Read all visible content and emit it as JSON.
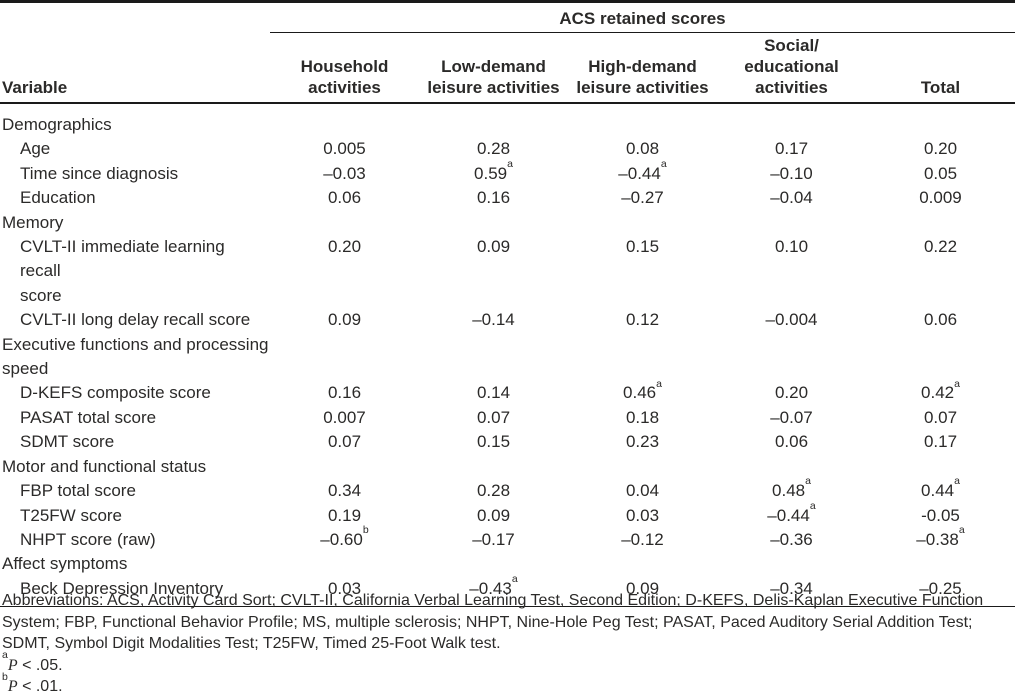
{
  "table": {
    "spanner": "ACS retained scores",
    "variable_header": "Variable",
    "columns": [
      {
        "name": "household-activities",
        "lines": [
          "Household",
          "activities"
        ]
      },
      {
        "name": "low-demand-leisure-activities",
        "lines": [
          "Low-demand",
          "leisure activities"
        ]
      },
      {
        "name": "high-demand-leisure-activities",
        "lines": [
          "High-demand",
          "leisure activities"
        ]
      },
      {
        "name": "social-educational-activities",
        "lines": [
          "Social/",
          "educational",
          "activities"
        ]
      },
      {
        "name": "total",
        "lines": [
          "Total"
        ]
      }
    ],
    "rows": [
      {
        "type": "section",
        "label": [
          "Demographics"
        ]
      },
      {
        "type": "item",
        "label": [
          "Age"
        ],
        "values": [
          {
            "v": "0.005"
          },
          {
            "v": "0.28"
          },
          {
            "v": "0.08"
          },
          {
            "v": "0.17"
          },
          {
            "v": "0.20"
          }
        ]
      },
      {
        "type": "item",
        "label": [
          "Time since diagnosis"
        ],
        "values": [
          {
            "v": "–0.03"
          },
          {
            "v": "0.59",
            "sup": "a"
          },
          {
            "v": "–0.44",
            "sup": "a"
          },
          {
            "v": "–0.10"
          },
          {
            "v": "0.05"
          }
        ]
      },
      {
        "type": "item",
        "label": [
          "Education"
        ],
        "values": [
          {
            "v": "0.06"
          },
          {
            "v": "0.16"
          },
          {
            "v": "–0.27"
          },
          {
            "v": "–0.04"
          },
          {
            "v": "0.009"
          }
        ]
      },
      {
        "type": "section",
        "label": [
          "Memory"
        ]
      },
      {
        "type": "item",
        "label": [
          "CVLT-II immediate learning recall",
          "score"
        ],
        "values": [
          {
            "v": "0.20"
          },
          {
            "v": "0.09"
          },
          {
            "v": "0.15"
          },
          {
            "v": "0.10"
          },
          {
            "v": "0.22"
          }
        ]
      },
      {
        "type": "item",
        "label": [
          "CVLT-II long delay recall score"
        ],
        "values": [
          {
            "v": "0.09"
          },
          {
            "v": "–0.14"
          },
          {
            "v": "0.12"
          },
          {
            "v": "–0.004"
          },
          {
            "v": "0.06"
          }
        ]
      },
      {
        "type": "section",
        "label": [
          "Executive functions and processing",
          "speed"
        ]
      },
      {
        "type": "item",
        "label": [
          "D-KEFS composite score"
        ],
        "values": [
          {
            "v": "0.16"
          },
          {
            "v": "0.14"
          },
          {
            "v": "0.46",
            "sup": "a"
          },
          {
            "v": "0.20"
          },
          {
            "v": "0.42",
            "sup": "a"
          }
        ]
      },
      {
        "type": "item",
        "label": [
          "PASAT total score"
        ],
        "values": [
          {
            "v": "0.007"
          },
          {
            "v": "0.07"
          },
          {
            "v": "0.18"
          },
          {
            "v": "–0.07"
          },
          {
            "v": "0.07"
          }
        ]
      },
      {
        "type": "item",
        "label": [
          "SDMT score"
        ],
        "values": [
          {
            "v": "0.07"
          },
          {
            "v": "0.15"
          },
          {
            "v": "0.23"
          },
          {
            "v": "0.06"
          },
          {
            "v": "0.17"
          }
        ]
      },
      {
        "type": "section",
        "label": [
          "Motor and functional status"
        ]
      },
      {
        "type": "item",
        "label": [
          "FBP total score"
        ],
        "values": [
          {
            "v": "0.34"
          },
          {
            "v": "0.28"
          },
          {
            "v": "0.04"
          },
          {
            "v": "0.48",
            "sup": "a"
          },
          {
            "v": "0.44",
            "sup": "a"
          }
        ]
      },
      {
        "type": "item",
        "label": [
          "T25FW score"
        ],
        "values": [
          {
            "v": "0.19"
          },
          {
            "v": "0.09"
          },
          {
            "v": "0.03"
          },
          {
            "v": "–0.44",
            "sup": "a"
          },
          {
            "v": "-0.05"
          }
        ]
      },
      {
        "type": "item",
        "label": [
          "NHPT score (raw)"
        ],
        "values": [
          {
            "v": "–0.60",
            "sup": "b"
          },
          {
            "v": "–0.17"
          },
          {
            "v": "–0.12"
          },
          {
            "v": "–0.36"
          },
          {
            "v": "–0.38",
            "sup": "a"
          }
        ]
      },
      {
        "type": "section",
        "label": [
          "Affect symptoms"
        ]
      },
      {
        "type": "item",
        "label": [
          "Beck Depression Inventory"
        ],
        "values": [
          {
            "v": "0.03"
          },
          {
            "v": "–0.43",
            "sup": "a"
          },
          {
            "v": "0.09"
          },
          {
            "v": "–0.34"
          },
          {
            "v": "–0.25"
          }
        ]
      }
    ]
  },
  "footnotes": {
    "abbreviations": "Abbreviations: ACS, Activity Card Sort; CVLT-II, California Verbal Learning Test, Second Edition; D-KEFS, Delis-Kaplan Executive Function System; FBP, Functional Behavior Profile; MS, multiple sclerosis; NHPT, Nine-Hole Peg Test; PASAT, Paced Auditory Serial Addition Test; SDMT, Symbol Digit Modalities Test; T25FW, Timed 25-Foot Walk test.",
    "significance": [
      {
        "sup": "a",
        "stat": "P",
        "rest": " < .05."
      },
      {
        "sup": "b",
        "stat": "P",
        "rest": " < .01."
      }
    ]
  }
}
